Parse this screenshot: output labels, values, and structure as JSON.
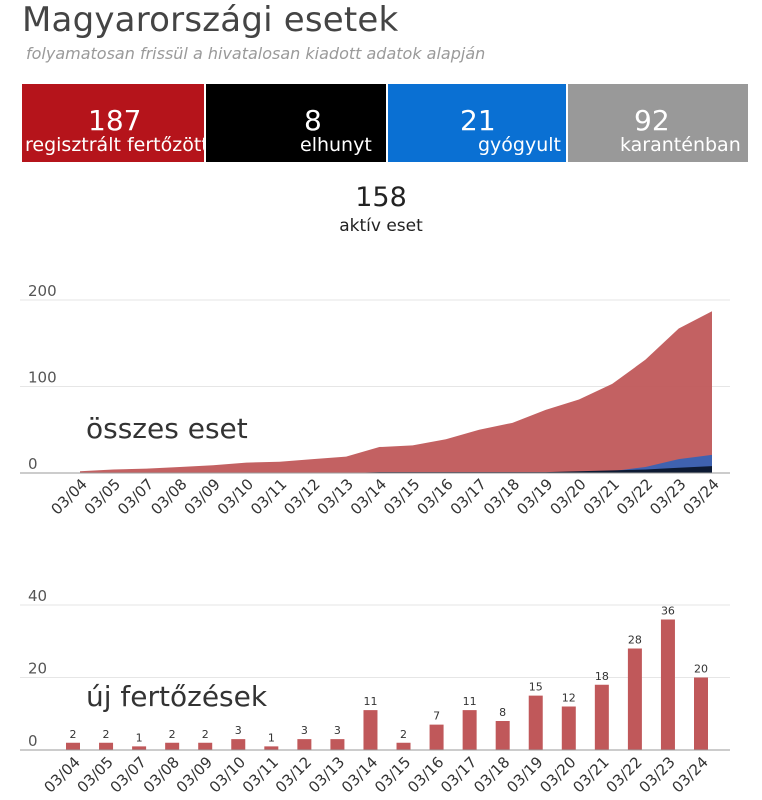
{
  "header": {
    "title": "Magyarországi esetek",
    "subtitle": "folyamatosan frissül a hivatalosan kiadott adatok alapján"
  },
  "stats": [
    {
      "value": "187",
      "label": "regisztrált fertőzött",
      "color": "#b5141b"
    },
    {
      "value": "8",
      "label": "elhunyt",
      "color": "#000000"
    },
    {
      "value": "21",
      "label": "gyógyult",
      "color": "#0a70d3"
    },
    {
      "value": "92",
      "label": "karanténban",
      "color": "#999999"
    }
  ],
  "active": {
    "value": "158",
    "label": "aktív eset"
  },
  "chart_data": [
    {
      "type": "area",
      "title": "összes eset",
      "categories": [
        "03/04",
        "03/05",
        "03/07",
        "03/08",
        "03/09",
        "03/10",
        "03/11",
        "03/12",
        "03/13",
        "03/14",
        "03/15",
        "03/16",
        "03/17",
        "03/18",
        "03/19",
        "03/20",
        "03/21",
        "03/22",
        "03/23",
        "03/24"
      ],
      "yticks": [
        0,
        100,
        200
      ],
      "ylim": [
        0,
        200
      ],
      "stacked": false,
      "series": [
        {
          "name": "regisztrált fertőzött",
          "color": "#c0585a",
          "values": [
            2,
            4,
            5,
            7,
            9,
            12,
            13,
            16,
            19,
            30,
            32,
            39,
            50,
            58,
            73,
            85,
            103,
            131,
            167,
            187
          ]
        },
        {
          "name": "gyógyult",
          "color": "#3f62b0",
          "values": [
            0,
            0,
            0,
            0,
            0,
            0,
            0,
            0,
            0,
            0,
            0,
            0,
            0,
            0,
            0,
            1,
            2,
            7,
            16,
            21
          ]
        },
        {
          "name": "elhunyt",
          "color": "#0d1a33",
          "values": [
            0,
            0,
            0,
            0,
            0,
            0,
            0,
            0,
            0,
            1,
            1,
            1,
            1,
            1,
            1,
            2,
            3,
            4,
            6,
            8
          ]
        }
      ],
      "grid": true
    },
    {
      "type": "bar",
      "title": "új fertőzések",
      "categories": [
        "03/04",
        "03/05",
        "03/07",
        "03/08",
        "03/09",
        "03/10",
        "03/11",
        "03/12",
        "03/13",
        "03/14",
        "03/15",
        "03/16",
        "03/17",
        "03/18",
        "03/19",
        "03/20",
        "03/21",
        "03/22",
        "03/23",
        "03/24"
      ],
      "values": [
        2,
        2,
        1,
        2,
        2,
        3,
        1,
        3,
        3,
        11,
        2,
        7,
        11,
        8,
        15,
        12,
        18,
        28,
        36,
        20
      ],
      "yticks": [
        0,
        20,
        40
      ],
      "ylim": [
        0,
        40
      ],
      "color": "#c0585a",
      "grid": true
    }
  ]
}
